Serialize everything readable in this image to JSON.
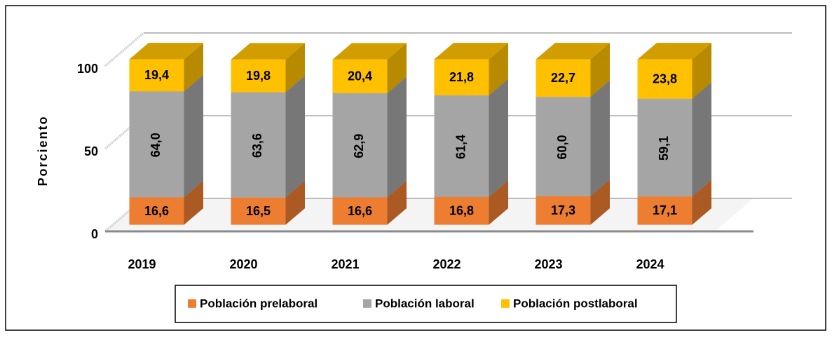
{
  "chart_data": {
    "type": "bar3d_stacked",
    "y_label": "Porciento",
    "categories": [
      "2019",
      "2020",
      "2021",
      "2022",
      "2023",
      "2024"
    ],
    "series": [
      {
        "name": "Población prelaboral",
        "color": "#ed7d31",
        "values": [
          16.6,
          16.5,
          16.6,
          16.8,
          17.3,
          17.1
        ],
        "value_labels": [
          "16,6",
          "16,5",
          "16,6",
          "16,8",
          "17,3",
          "17,1"
        ]
      },
      {
        "name": "Población laboral",
        "color": "#a5a5a5",
        "values": [
          64.0,
          63.6,
          62.9,
          61.4,
          60.0,
          59.1
        ],
        "value_labels": [
          "64,0",
          "63,6",
          "62,9",
          "61,4",
          "60,0",
          "59,1"
        ]
      },
      {
        "name": "Población postlaboral",
        "color": "#ffc000",
        "values": [
          19.4,
          19.8,
          20.4,
          21.8,
          22.7,
          23.8
        ],
        "value_labels": [
          "19,4",
          "19,8",
          "20,4",
          "21,8",
          "22,7",
          "23,8"
        ]
      }
    ],
    "ylim": [
      0,
      100
    ],
    "yticks": [
      0,
      50,
      100
    ],
    "grid": true,
    "legend": "bottom"
  }
}
